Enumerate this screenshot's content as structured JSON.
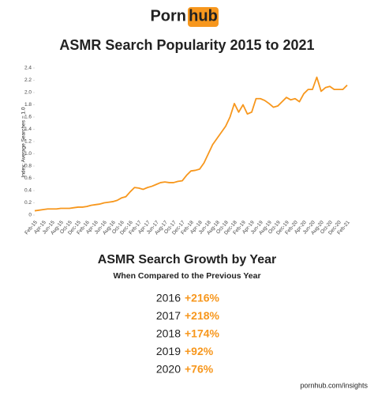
{
  "logo": {
    "left": "Porn",
    "right": "hub"
  },
  "chart_data": {
    "type": "line",
    "title": "ASMR Search Popularity 2015 to 2021",
    "y_label": "Index: Average Searches = 1.0",
    "color": "#f7971d",
    "categories": [
      "Feb-15",
      null,
      "Apr-15",
      null,
      "Jun-15",
      null,
      "Aug-15",
      null,
      "Oct-15",
      null,
      "Dec-15",
      null,
      "Feb-16",
      null,
      "Apr-16",
      null,
      "Jun-16",
      null,
      "Aug-16",
      null,
      "Oct-16",
      null,
      "Dec-16",
      null,
      "Feb-17",
      null,
      "Apr-17",
      null,
      "Jun-17",
      null,
      "Aug-17",
      null,
      "Oct-17",
      null,
      "Dec-17",
      null,
      "Feb-18",
      null,
      "Apr-18",
      null,
      "Jun-18",
      null,
      "Aug-18",
      null,
      "Oct-18",
      null,
      "Dec-18",
      null,
      "Feb-19",
      null,
      "Apr-19",
      null,
      "Jun-19",
      null,
      "Aug-19",
      null,
      "Oct-19",
      null,
      "Dec-19",
      null,
      "Feb-20",
      null,
      "Apr-20",
      null,
      "Jun-20",
      null,
      "Aug-20",
      null,
      "Oct-20",
      null,
      "Dec-20",
      null,
      "Feb-21"
    ],
    "values": [
      0.07,
      0.08,
      0.09,
      0.1,
      0.1,
      0.1,
      0.11,
      0.11,
      0.11,
      0.12,
      0.13,
      0.13,
      0.14,
      0.16,
      0.17,
      0.18,
      0.2,
      0.21,
      0.22,
      0.24,
      0.28,
      0.3,
      0.38,
      0.45,
      0.44,
      0.42,
      0.45,
      0.47,
      0.5,
      0.53,
      0.54,
      0.53,
      0.53,
      0.55,
      0.56,
      0.65,
      0.72,
      0.73,
      0.75,
      0.85,
      1.0,
      1.15,
      1.25,
      1.35,
      1.45,
      1.6,
      1.82,
      1.68,
      1.8,
      1.65,
      1.68,
      1.9,
      1.9,
      1.87,
      1.82,
      1.76,
      1.78,
      1.85,
      1.92,
      1.88,
      1.9,
      1.85,
      1.98,
      2.05,
      2.05,
      2.25,
      2.02,
      2.08,
      2.1,
      2.05,
      2.05,
      2.05,
      2.12
    ],
    "ylim": [
      0,
      2.4
    ],
    "yticks": [
      0,
      0.2,
      0.4,
      0.6,
      0.8,
      {
        "value": 1,
        "label": "1.0"
      },
      1.2,
      1.4,
      1.6,
      1.8,
      {
        "value": 2,
        "label": "2.0"
      },
      2.2,
      2.4
    ]
  },
  "growth": {
    "title": "ASMR Search Growth by Year",
    "subtitle": "When Compared to the Previous Year",
    "rows": [
      [
        "2016",
        "+216%"
      ],
      [
        "2017",
        "+218%"
      ],
      [
        "2018",
        "+174%"
      ],
      [
        "2019",
        "+92%"
      ],
      [
        "2020",
        "+76%"
      ]
    ]
  },
  "footer": "pornhub.com/insights"
}
